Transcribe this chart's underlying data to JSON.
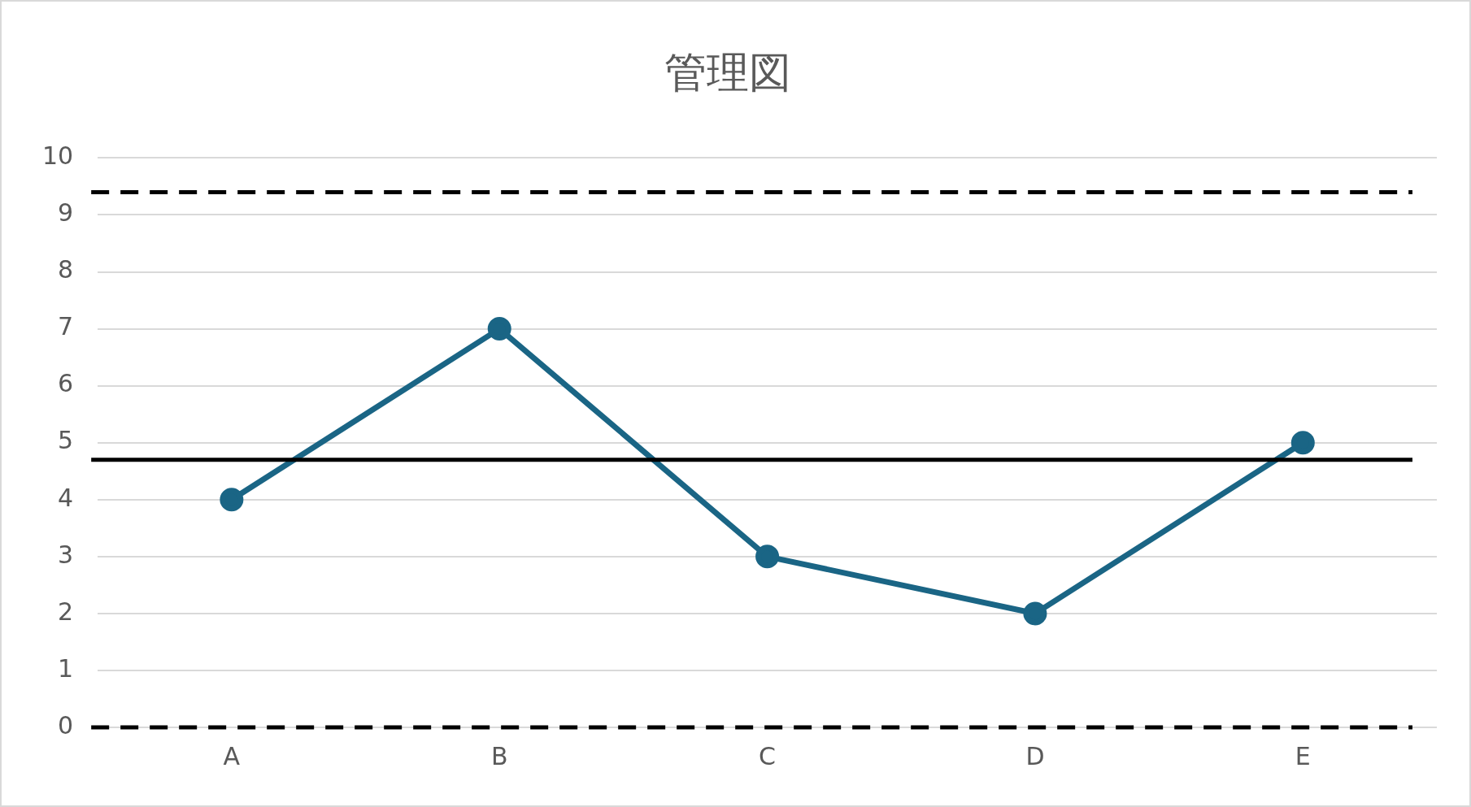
{
  "chart_data": {
    "type": "line",
    "title": "管理図",
    "categories": [
      "A",
      "B",
      "C",
      "D",
      "E"
    ],
    "series": [
      {
        "color": "#1a6585",
        "values": [
          4,
          7,
          3,
          2,
          5
        ]
      }
    ],
    "ylim": [
      0,
      10
    ],
    "yticks": [
      0,
      1,
      2,
      3,
      4,
      5,
      6,
      7,
      8,
      9,
      10
    ],
    "grid": "y",
    "legend": false,
    "marker": "circle",
    "line_style": "solid",
    "ref_lines": [
      {
        "axis": "y",
        "value": 9.4,
        "color": "#000000",
        "line_style": "dashed"
      },
      {
        "axis": "y",
        "value": 4.7,
        "color": "#000000",
        "line_style": "solid"
      },
      {
        "axis": "y",
        "value": 0,
        "color": "#000000",
        "line_style": "dashed"
      }
    ]
  }
}
